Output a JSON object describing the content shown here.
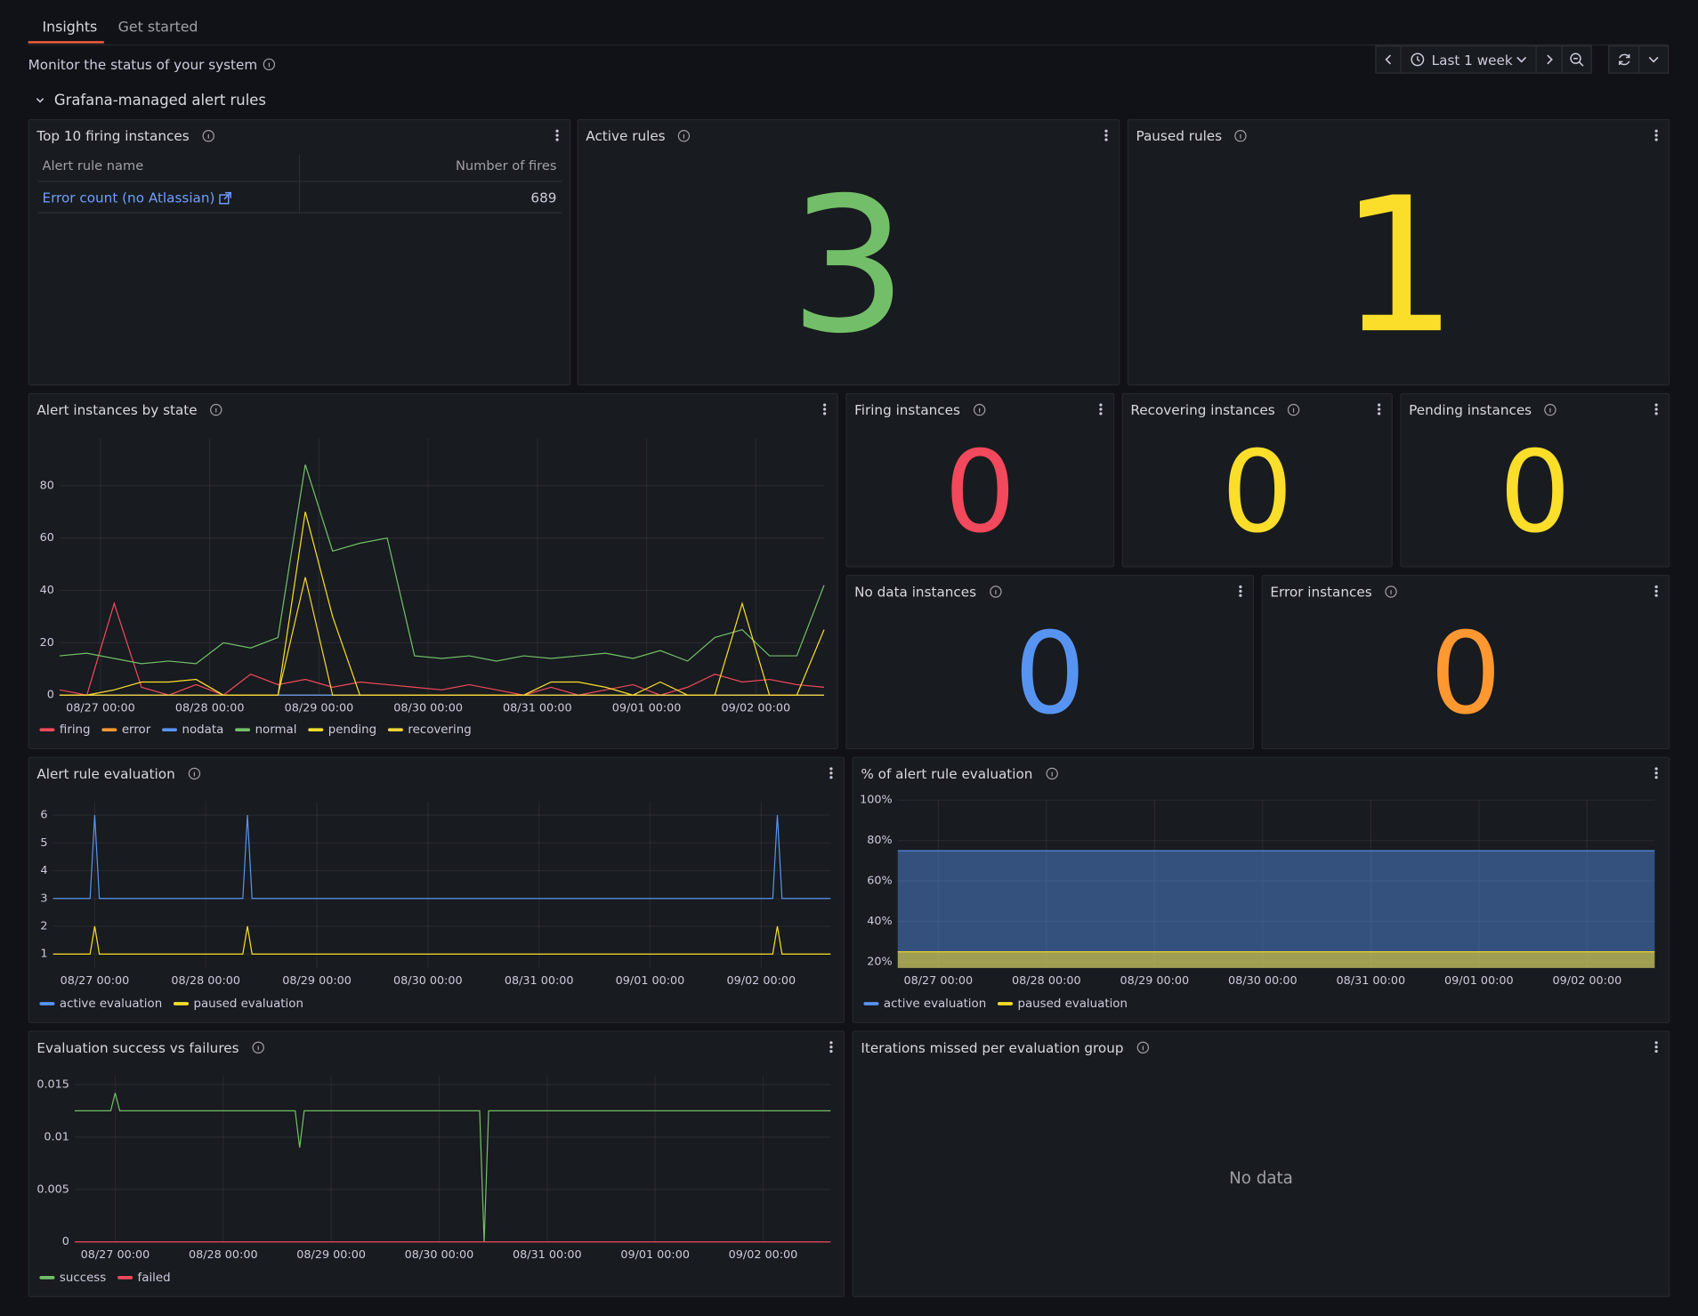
{
  "tabs": [
    "Insights",
    "Get started"
  ],
  "description": "Monitor the status of your system",
  "time_range": "Last 1 week",
  "section": "Grafana-managed alert rules",
  "top_firing": {
    "title": "Top 10 firing instances",
    "columns": [
      "Alert rule name",
      "Number of fires"
    ],
    "rows": [
      [
        "Error count (no Atlassian)",
        689
      ]
    ]
  },
  "stats": [
    {
      "title": "Active rules",
      "value": 3,
      "color": "#73bf69"
    },
    {
      "title": "Paused rules",
      "value": 1,
      "color": "#fade2a"
    },
    {
      "title": "Firing instances",
      "value": 0,
      "color": "#f2495c"
    },
    {
      "title": "Recovering instances",
      "value": 0,
      "color": "#fade2a"
    },
    {
      "title": "Pending instances",
      "value": 0,
      "color": "#fade2a"
    },
    {
      "title": "No data instances",
      "value": 0,
      "color": "#5794f2"
    },
    {
      "title": "Error instances",
      "value": 0,
      "color": "#ff9830"
    }
  ],
  "chart_data": [
    {
      "type": "line",
      "title": "Alert instances by state",
      "x": [
        "08/26 15:00",
        "08/26 21:00",
        "08/27 03:00",
        "08/27 09:00",
        "08/27 15:00",
        "08/27 21:00",
        "08/28 03:00",
        "08/28 09:00",
        "08/28 15:00",
        "08/28 21:00",
        "08/29 03:00",
        "08/29 09:00",
        "08/29 15:00",
        "08/29 21:00",
        "08/30 03:00",
        "08/30 09:00",
        "08/30 15:00",
        "08/30 21:00",
        "08/31 03:00",
        "08/31 09:00",
        "08/31 15:00",
        "08/31 21:00",
        "09/01 03:00",
        "09/01 09:00",
        "09/01 15:00",
        "09/01 21:00",
        "09/02 03:00",
        "09/02 09:00",
        "09/02 15:00"
      ],
      "series": [
        {
          "name": "firing",
          "color": "#f2495c",
          "values": [
            2,
            0,
            35,
            3,
            0,
            4,
            0,
            8,
            4,
            6,
            3,
            5,
            4,
            3,
            2,
            4,
            2,
            0,
            3,
            0,
            2,
            4,
            0,
            3,
            8,
            5,
            6,
            4,
            3
          ]
        },
        {
          "name": "error",
          "color": "#ff9830",
          "values": [
            0,
            0,
            0,
            0,
            0,
            0,
            0,
            0,
            0,
            0,
            0,
            0,
            0,
            0,
            0,
            0,
            0,
            0,
            0,
            0,
            0,
            0,
            0,
            0,
            0,
            0,
            0,
            0,
            0
          ]
        },
        {
          "name": "nodata",
          "color": "#5794f2",
          "values": [
            0,
            0,
            0,
            0,
            0,
            0,
            0,
            0,
            0,
            0,
            0,
            0,
            0,
            0,
            0,
            0,
            0,
            0,
            0,
            0,
            0,
            0,
            0,
            0,
            0,
            0,
            0,
            0,
            0
          ]
        },
        {
          "name": "normal",
          "color": "#73bf69",
          "values": [
            15,
            16,
            14,
            12,
            13,
            12,
            20,
            18,
            22,
            88,
            55,
            58,
            60,
            15,
            14,
            15,
            13,
            15,
            14,
            15,
            16,
            14,
            17,
            13,
            22,
            25,
            15,
            15,
            42
          ]
        },
        {
          "name": "pending",
          "color": "#fade2a",
          "values": [
            0,
            0,
            2,
            5,
            5,
            6,
            0,
            0,
            0,
            70,
            30,
            0,
            0,
            0,
            0,
            0,
            0,
            0,
            5,
            5,
            3,
            0,
            5,
            0,
            0,
            35,
            0,
            0,
            25
          ]
        },
        {
          "name": "recovering",
          "color": "#f5d437",
          "values": [
            0,
            0,
            0,
            0,
            0,
            0,
            0,
            0,
            0,
            45,
            0,
            0,
            0,
            0,
            0,
            0,
            0,
            0,
            0,
            0,
            0,
            0,
            0,
            0,
            0,
            0,
            0,
            0,
            0
          ]
        }
      ],
      "xlim": [
        "08/26 15:00",
        "09/02 15:00"
      ],
      "xticks": [
        "08/27 00:00",
        "08/28 00:00",
        "08/29 00:00",
        "08/30 00:00",
        "08/31 00:00",
        "09/01 00:00",
        "09/02 00:00"
      ],
      "ylim": [
        0,
        98
      ],
      "yticks": [
        0,
        20,
        40,
        60,
        80
      ],
      "grid": true
    },
    {
      "type": "line",
      "title": "Alert rule evaluation",
      "x": [
        "08/26 15:00",
        "08/26 23:00",
        "08/27 00:00",
        "08/27 01:00",
        "08/28 08:00",
        "08/28 09:00",
        "08/28 10:00",
        "09/02 02:30",
        "09/02 03:30",
        "09/02 04:30",
        "09/02 15:00"
      ],
      "series": [
        {
          "name": "active evaluation",
          "color": "#5794f2",
          "values": [
            3,
            3,
            6,
            3,
            3,
            6,
            3,
            3,
            6,
            3,
            3
          ]
        },
        {
          "name": "paused evaluation",
          "color": "#fade2a",
          "values": [
            1,
            1,
            2,
            1,
            1,
            2,
            1,
            1,
            2,
            1,
            1
          ]
        }
      ],
      "xlim": [
        "08/26 15:00",
        "09/02 15:00"
      ],
      "xticks": [
        "08/27 00:00",
        "08/28 00:00",
        "08/29 00:00",
        "08/30 00:00",
        "08/31 00:00",
        "09/01 00:00",
        "09/02 00:00"
      ],
      "ylim": [
        0.5,
        6.5
      ],
      "yticks": [
        1,
        2,
        3,
        4,
        5,
        6
      ],
      "grid": true
    },
    {
      "type": "area",
      "title": "% of alert rule evaluation",
      "x": [
        "08/26 15:00",
        "09/02 15:00"
      ],
      "series": [
        {
          "name": "active evaluation",
          "color": "#5794f2",
          "values": [
            75,
            75
          ]
        },
        {
          "name": "paused evaluation",
          "color": "#fade2a",
          "values": [
            25,
            25
          ]
        }
      ],
      "xlim": [
        "08/26 15:00",
        "09/02 15:00"
      ],
      "xticks": [
        "08/27 00:00",
        "08/28 00:00",
        "08/29 00:00",
        "08/30 00:00",
        "08/31 00:00",
        "09/01 00:00",
        "09/02 00:00"
      ],
      "ylim": [
        17,
        100
      ],
      "yticks": [
        {
          "value": 20,
          "label": "20%"
        },
        {
          "value": 40,
          "label": "40%"
        },
        {
          "value": 60,
          "label": "60%"
        },
        {
          "value": 80,
          "label": "80%"
        },
        {
          "value": 100,
          "label": "100%"
        }
      ],
      "grid": true
    },
    {
      "type": "line",
      "title": "Evaluation success vs failures",
      "x": [
        "08/26 15:00",
        "08/26 23:00",
        "08/27 00:00",
        "08/27 01:00",
        "08/28 16:00",
        "08/28 17:00",
        "08/28 18:00",
        "08/30 09:00",
        "08/30 10:00",
        "08/30 11:00",
        "09/02 15:00"
      ],
      "series": [
        {
          "name": "success",
          "color": "#73bf69",
          "values": [
            0.0125,
            0.0125,
            0.0142,
            0.0125,
            0.0125,
            0.009,
            0.0125,
            0.0125,
            0,
            0.0125,
            0.0125
          ]
        },
        {
          "name": "failed",
          "color": "#f2495c",
          "values": [
            0,
            0,
            0,
            0,
            0,
            0,
            0,
            0,
            0,
            0,
            0
          ]
        }
      ],
      "xlim": [
        "08/26 15:00",
        "09/02 15:00"
      ],
      "xticks": [
        "08/27 00:00",
        "08/28 00:00",
        "08/29 00:00",
        "08/30 00:00",
        "08/31 00:00",
        "09/01 00:00",
        "09/02 00:00"
      ],
      "ylim": [
        0,
        0.0159
      ],
      "yticks": [
        0,
        0.005,
        0.01,
        0.015
      ],
      "grid": true
    }
  ],
  "no_data_panel": {
    "title": "Iterations missed per evaluation group",
    "message": "No data"
  }
}
